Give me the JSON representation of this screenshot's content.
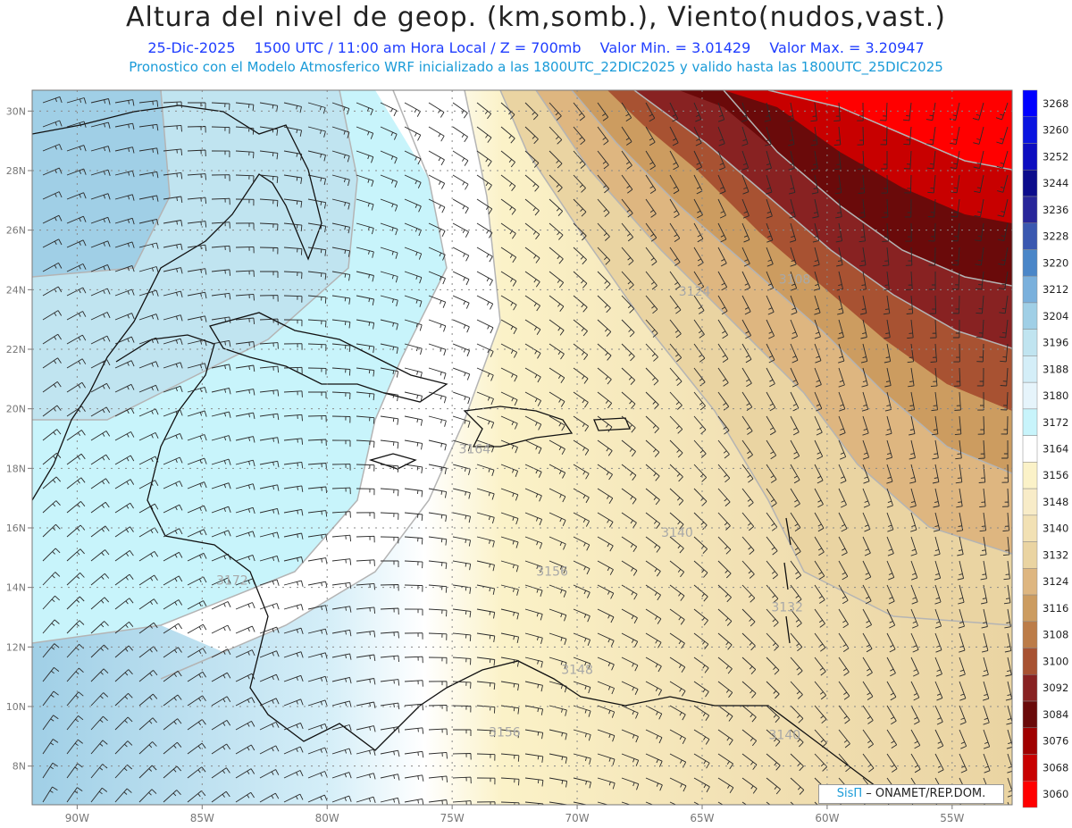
{
  "header": {
    "title": "Altura del nivel de geop. (km,somb.), Viento(nudos,vast.)",
    "date": "25-Dic-2025",
    "time": "1500 UTC / 11:00 am Hora Local / Z = 700mb",
    "min": "Valor Min. = 3.01429",
    "max": "Valor Max. = 3.20947",
    "model_line": "Pronostico con el Modelo Atmosferico WRF inicializado a las 1800UTC_22DIC2025 y valido hasta las  1800UTC_25DIC2025"
  },
  "map": {
    "lon_range": [
      -91.8,
      -52.6
    ],
    "lat_range": [
      6.7,
      30.7
    ],
    "lon_ticks": [
      "90W",
      "85W",
      "80W",
      "75W",
      "70W",
      "65W",
      "60W",
      "55W"
    ],
    "lon_tick_values": [
      -90,
      -85,
      -80,
      -75,
      -70,
      -65,
      -60,
      -55
    ],
    "lat_ticks": [
      "8N",
      "10N",
      "12N",
      "14N",
      "16N",
      "18N",
      "20N",
      "22N",
      "24N",
      "26N",
      "28N",
      "30N"
    ],
    "lat_tick_values": [
      8,
      10,
      12,
      14,
      16,
      18,
      20,
      22,
      24,
      26,
      28,
      30
    ],
    "contour_labels": [
      {
        "text": "3156",
        "lon": -71.0,
        "lat": 14.4
      },
      {
        "text": "3156",
        "lon": -72.9,
        "lat": 9.0
      },
      {
        "text": "3148",
        "lon": -70.0,
        "lat": 11.1
      },
      {
        "text": "3140",
        "lon": -66.0,
        "lat": 15.7
      },
      {
        "text": "3140",
        "lon": -61.7,
        "lat": 8.9
      },
      {
        "text": "3132",
        "lon": -61.6,
        "lat": 13.2
      },
      {
        "text": "3164",
        "lon": -74.1,
        "lat": 18.5
      },
      {
        "text": "3172",
        "lon": -83.8,
        "lat": 14.1
      },
      {
        "text": "3108",
        "lon": -61.3,
        "lat": 24.2
      },
      {
        "text": "3124",
        "lon": -65.3,
        "lat": 23.8
      }
    ]
  },
  "legend": {
    "levels": [
      "3268",
      "3260",
      "3252",
      "3244",
      "3236",
      "3228",
      "3220",
      "3212",
      "3204",
      "3196",
      "3188",
      "3180",
      "3172",
      "3164",
      "3156",
      "3148",
      "3140",
      "3132",
      "3124",
      "3116",
      "3108",
      "3100",
      "3092",
      "3084",
      "3076",
      "3068",
      "3060"
    ],
    "colors": [
      "#0000ff",
      "#0a14e0",
      "#0d0dc0",
      "#0c0c8c",
      "#28269a",
      "#3a58b0",
      "#4a86c8",
      "#7ab0dc",
      "#a0cfe6",
      "#c0e4f0",
      "#d4eef8",
      "#e6f4fb",
      "#c8f4fb",
      "#ffffff",
      "#fbf2c8",
      "#f8ecc8",
      "#f2e1b4",
      "#ead4a2",
      "#deb680",
      "#cc9c60",
      "#bc7c48",
      "#a85232",
      "#882222",
      "#6a0a0a",
      "#a00000",
      "#c80000",
      "#ff0000"
    ]
  },
  "credit": {
    "brand": "SisΠ",
    "org": "ONAMET/REP.DOM."
  }
}
